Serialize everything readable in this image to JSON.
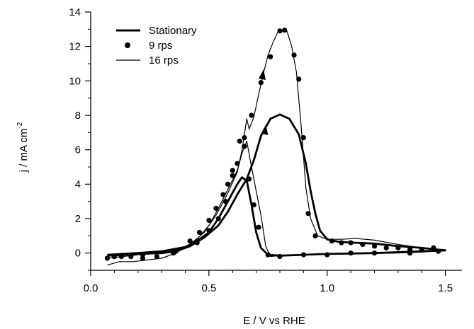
{
  "chart_data": {
    "type": "line",
    "xlabel": "E / V vs RHE",
    "ylabel_main": "j / mA cm",
    "ylabel_sup": "-2",
    "xlim": [
      0.0,
      1.57
    ],
    "ylim": [
      -1.0,
      14.0
    ],
    "xticks": [
      "0.0",
      "0.5",
      "1.0",
      "1.5"
    ],
    "xtick_values": [
      0.0,
      0.5,
      1.0,
      1.5
    ],
    "yticks": [
      "0",
      "2",
      "4",
      "6",
      "8",
      "10",
      "12",
      "14"
    ],
    "ytick_values": [
      0,
      2,
      4,
      6,
      8,
      10,
      12,
      14
    ],
    "grid": false,
    "legend_position": "top-left",
    "legend": [
      {
        "label": "Stationary",
        "style": "thick-line"
      },
      {
        "label": "9 rps",
        "style": "marker"
      },
      {
        "label": "16 rps",
        "style": "thin-line"
      }
    ],
    "series": [
      {
        "name": "Stationary",
        "style": "thick-line",
        "forward": [
          [
            0.07,
            -0.15
          ],
          [
            0.2,
            -0.05
          ],
          [
            0.3,
            0.0
          ],
          [
            0.36,
            0.1
          ],
          [
            0.42,
            0.4
          ],
          [
            0.48,
            0.9
          ],
          [
            0.54,
            1.6
          ],
          [
            0.58,
            2.4
          ],
          [
            0.62,
            3.4
          ],
          [
            0.66,
            4.3
          ],
          [
            0.69,
            5.4
          ],
          [
            0.72,
            6.8
          ],
          [
            0.76,
            7.8
          ],
          [
            0.8,
            8.05
          ],
          [
            0.84,
            7.8
          ],
          [
            0.88,
            6.9
          ],
          [
            0.91,
            5.2
          ],
          [
            0.93,
            3.6
          ],
          [
            0.95,
            2.3
          ],
          [
            0.97,
            1.3
          ],
          [
            1.0,
            0.8
          ],
          [
            1.05,
            0.65
          ],
          [
            1.12,
            0.6
          ],
          [
            1.2,
            0.55
          ],
          [
            1.3,
            0.4
          ],
          [
            1.4,
            0.3
          ],
          [
            1.5,
            0.15
          ]
        ],
        "reverse": [
          [
            1.5,
            0.15
          ],
          [
            1.4,
            0.1
          ],
          [
            1.3,
            0.05
          ],
          [
            1.2,
            0.0
          ],
          [
            1.0,
            -0.05
          ],
          [
            0.9,
            -0.1
          ],
          [
            0.8,
            -0.15
          ],
          [
            0.75,
            -0.1
          ],
          [
            0.72,
            0.3
          ],
          [
            0.7,
            1.2
          ],
          [
            0.68,
            2.8
          ],
          [
            0.66,
            4.2
          ],
          [
            0.64,
            4.4
          ],
          [
            0.62,
            4.0
          ],
          [
            0.58,
            3.0
          ],
          [
            0.54,
            2.0
          ],
          [
            0.5,
            1.2
          ],
          [
            0.45,
            0.7
          ],
          [
            0.4,
            0.35
          ],
          [
            0.3,
            0.1
          ],
          [
            0.2,
            0.0
          ],
          [
            0.07,
            -0.1
          ]
        ]
      },
      {
        "name": "9 rps",
        "style": "marker",
        "points": [
          [
            0.07,
            -0.3
          ],
          [
            0.1,
            -0.2
          ],
          [
            0.13,
            -0.2
          ],
          [
            0.17,
            -0.2
          ],
          [
            0.22,
            -0.3
          ],
          [
            0.28,
            -0.2
          ],
          [
            0.36,
            0.1
          ],
          [
            0.42,
            0.7
          ],
          [
            0.46,
            1.2
          ],
          [
            0.5,
            1.9
          ],
          [
            0.53,
            2.6
          ],
          [
            0.56,
            3.4
          ],
          [
            0.58,
            4.0
          ],
          [
            0.6,
            4.8
          ],
          [
            0.62,
            5.2
          ],
          [
            0.65,
            6.7
          ],
          [
            0.68,
            8.0
          ],
          [
            0.72,
            9.9
          ],
          [
            0.76,
            11.4
          ],
          [
            0.8,
            12.9
          ],
          [
            0.82,
            12.95
          ],
          [
            0.86,
            11.5
          ],
          [
            0.88,
            10.1
          ],
          [
            0.9,
            6.7
          ],
          [
            0.92,
            2.3
          ],
          [
            0.95,
            1.0
          ],
          [
            1.02,
            0.7
          ],
          [
            1.06,
            0.6
          ],
          [
            1.1,
            0.6
          ],
          [
            1.15,
            0.5
          ],
          [
            1.2,
            0.4
          ],
          [
            1.25,
            0.3
          ],
          [
            1.3,
            0.3
          ],
          [
            1.35,
            0.2
          ],
          [
            1.4,
            0.2
          ],
          [
            1.45,
            0.3
          ],
          [
            1.47,
            0.1
          ],
          [
            1.35,
            0.0
          ],
          [
            1.2,
            0.0
          ],
          [
            1.1,
            0.0
          ],
          [
            1.0,
            -0.1
          ],
          [
            0.9,
            -0.1
          ],
          [
            0.8,
            -0.2
          ],
          [
            0.75,
            -0.1
          ],
          [
            0.71,
            1.5
          ],
          [
            0.69,
            2.8
          ],
          [
            0.67,
            4.3
          ],
          [
            0.65,
            6.2
          ],
          [
            0.63,
            6.5
          ],
          [
            0.6,
            4.5
          ],
          [
            0.57,
            3.0
          ],
          [
            0.54,
            2.0
          ],
          [
            0.5,
            1.3
          ],
          [
            0.45,
            0.6
          ],
          [
            0.35,
            0.0
          ],
          [
            0.22,
            -0.1
          ],
          [
            0.1,
            -0.2
          ]
        ]
      },
      {
        "name": "16 rps",
        "style": "thin-line",
        "forward": [
          [
            0.07,
            -0.7
          ],
          [
            0.12,
            -0.5
          ],
          [
            0.18,
            -0.5
          ],
          [
            0.24,
            -0.4
          ],
          [
            0.3,
            -0.3
          ],
          [
            0.36,
            0.0
          ],
          [
            0.42,
            0.5
          ],
          [
            0.48,
            1.2
          ],
          [
            0.53,
            2.2
          ],
          [
            0.57,
            3.2
          ],
          [
            0.6,
            4.1
          ],
          [
            0.62,
            4.7
          ],
          [
            0.64,
            6.0
          ],
          [
            0.66,
            7.8
          ],
          [
            0.67,
            7.2
          ],
          [
            0.69,
            7.9
          ],
          [
            0.71,
            9.2
          ],
          [
            0.73,
            10.4
          ],
          [
            0.75,
            11.5
          ],
          [
            0.77,
            12.2
          ],
          [
            0.79,
            12.8
          ],
          [
            0.81,
            12.9
          ],
          [
            0.83,
            12.9
          ],
          [
            0.85,
            12.0
          ],
          [
            0.87,
            10.5
          ],
          [
            0.89,
            7.4
          ],
          [
            0.91,
            3.8
          ],
          [
            0.93,
            2.0
          ],
          [
            0.96,
            1.0
          ],
          [
            1.0,
            0.8
          ],
          [
            1.06,
            0.8
          ],
          [
            1.12,
            0.85
          ],
          [
            1.2,
            0.75
          ],
          [
            1.3,
            0.5
          ],
          [
            1.4,
            0.3
          ],
          [
            1.5,
            0.2
          ]
        ],
        "reverse": [
          [
            1.5,
            0.2
          ],
          [
            1.4,
            0.05
          ],
          [
            1.3,
            0.0
          ],
          [
            1.1,
            -0.05
          ],
          [
            0.9,
            -0.1
          ],
          [
            0.8,
            -0.15
          ],
          [
            0.76,
            -0.2
          ],
          [
            0.74,
            0.4
          ],
          [
            0.72,
            2.2
          ],
          [
            0.7,
            3.6
          ],
          [
            0.68,
            5.0
          ],
          [
            0.66,
            6.5
          ],
          [
            0.64,
            5.8
          ],
          [
            0.62,
            4.8
          ],
          [
            0.58,
            3.7
          ],
          [
            0.54,
            2.6
          ],
          [
            0.5,
            1.6
          ],
          [
            0.45,
            0.8
          ],
          [
            0.4,
            0.3
          ],
          [
            0.3,
            0.0
          ],
          [
            0.2,
            -0.1
          ],
          [
            0.07,
            -0.3
          ]
        ]
      }
    ],
    "arrows": [
      {
        "series": "Stationary",
        "at": [
          0.735,
          7.1
        ],
        "direction": "up-right"
      },
      {
        "series": "9 rps",
        "at": [
          0.725,
          10.3
        ],
        "direction": "up-right"
      }
    ]
  }
}
